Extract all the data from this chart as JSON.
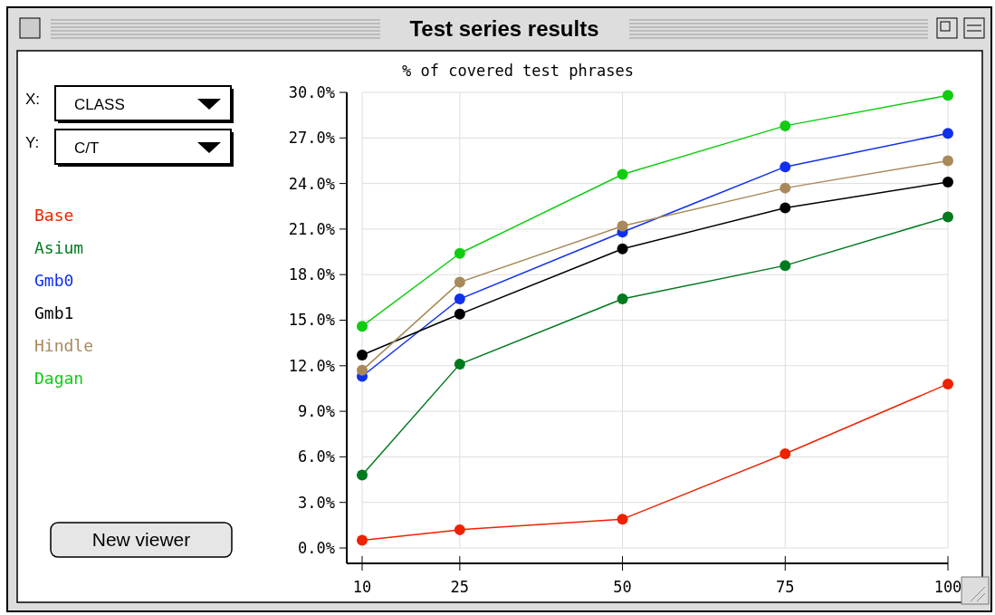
{
  "chart_data": {
    "type": "line",
    "title": "Test series results",
    "ylabel": "% of covered test phrases",
    "x": [
      10,
      25,
      50,
      75,
      100
    ],
    "xlim": [
      10,
      100
    ],
    "xticks": [
      10,
      25,
      50,
      75,
      100
    ],
    "ylim": [
      0,
      30
    ],
    "yticks": [
      {
        "value": 0,
        "label": "0.0%"
      },
      {
        "value": 3,
        "label": "3.0%"
      },
      {
        "value": 6,
        "label": "6.0%"
      },
      {
        "value": 9,
        "label": "9.0%"
      },
      {
        "value": 12,
        "label": "12.0%"
      },
      {
        "value": 15,
        "label": "15.0%"
      },
      {
        "value": 18,
        "label": "18.0%"
      },
      {
        "value": 21,
        "label": "21.0%"
      },
      {
        "value": 24,
        "label": "24.0%"
      },
      {
        "value": 27,
        "label": "27.0%"
      },
      {
        "value": 30,
        "label": "30.0%"
      }
    ],
    "grid": true,
    "legend": "left",
    "marker": "circle",
    "line_style": "solid",
    "annotations": [
      "X:",
      "CLASS",
      "Y:",
      "C/T",
      "New viewer"
    ],
    "series": [
      {
        "name": "Base",
        "color": "#ee2200",
        "values": [
          0.5,
          1.2,
          1.9,
          6.2,
          10.8
        ]
      },
      {
        "name": "Asium",
        "color": "#007a1e",
        "values": [
          4.8,
          12.1,
          16.4,
          18.6,
          21.8
        ]
      },
      {
        "name": "Gmb0",
        "color": "#1030ee",
        "values": [
          11.3,
          16.4,
          20.8,
          25.1,
          27.3
        ]
      },
      {
        "name": "Gmb1",
        "color": "#000000",
        "values": [
          12.7,
          15.4,
          19.7,
          22.4,
          24.1
        ]
      },
      {
        "name": "Hindle",
        "color": "#a88a5a",
        "values": [
          11.7,
          17.5,
          21.2,
          23.7,
          25.5
        ]
      },
      {
        "name": "Dagan",
        "color": "#10cc10",
        "values": [
          14.6,
          19.4,
          24.6,
          27.8,
          29.8
        ]
      }
    ]
  }
}
